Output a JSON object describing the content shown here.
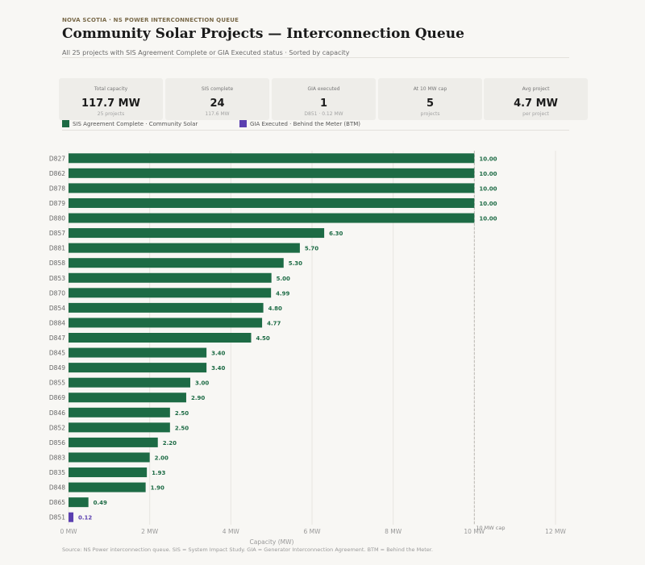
{
  "header": {
    "eyebrow": "NOVA SCOTIA · NS POWER INTERCONNECTION QUEUE",
    "title": "Community Solar Projects — Interconnection Queue",
    "subtitle": "All 25 projects with SIS Agreement Complete or GIA Executed status · Sorted by capacity"
  },
  "stats": [
    {
      "label": "Total capacity",
      "value": "117.7 MW",
      "sub": "25 projects"
    },
    {
      "label": "SIS complete",
      "value": "24",
      "sub": "117.6 MW"
    },
    {
      "label": "GIA executed",
      "value": "1",
      "sub": "D851 · 0.12 MW"
    },
    {
      "label": "At 10 MW cap",
      "value": "5",
      "sub": "projects"
    },
    {
      "label": "Avg project",
      "value": "4.7 MW",
      "sub": "per project"
    }
  ],
  "legend": [
    {
      "label": "SIS Agreement Complete · Community Solar",
      "color": "#1d6b45"
    },
    {
      "label": "GIA Executed · Behind the Meter (BTM)",
      "color": "#5b3fb0"
    }
  ],
  "chart_data": {
    "type": "bar",
    "orientation": "horizontal",
    "categories": [
      "D827",
      "D862",
      "D878",
      "D879",
      "D880",
      "D857",
      "D881",
      "D858",
      "D853",
      "D870",
      "D854",
      "D884",
      "D847",
      "D845",
      "D849",
      "D855",
      "D869",
      "D846",
      "D852",
      "D856",
      "D883",
      "D835",
      "D848",
      "D865",
      "D851"
    ],
    "values": [
      10.0,
      10.0,
      10.0,
      10.0,
      10.0,
      6.3,
      5.7,
      5.3,
      5.0,
      4.99,
      4.8,
      4.77,
      4.5,
      3.4,
      3.4,
      3.0,
      2.9,
      2.5,
      2.5,
      2.2,
      2.0,
      1.93,
      1.9,
      0.49,
      0.12
    ],
    "value_labels": [
      "10.00",
      "10.00",
      "10.00",
      "10.00",
      "10.00",
      "6.30",
      "5.70",
      "5.30",
      "5.00",
      "4.99",
      "4.80",
      "4.77",
      "4.50",
      "3.40",
      "3.40",
      "3.00",
      "2.90",
      "2.50",
      "2.50",
      "2.20",
      "2.00",
      "1.93",
      "1.90",
      "0.49",
      "0.12"
    ],
    "status": [
      "sis",
      "sis",
      "sis",
      "sis",
      "sis",
      "sis",
      "sis",
      "sis",
      "sis",
      "sis",
      "sis",
      "sis",
      "sis",
      "sis",
      "sis",
      "sis",
      "sis",
      "sis",
      "sis",
      "sis",
      "sis",
      "sis",
      "sis",
      "sis",
      "gia"
    ],
    "colors": {
      "sis": "#1d6b45",
      "gia": "#5b3fb0"
    },
    "xlabel": "Capacity (MW)",
    "xlim": [
      0,
      12
    ],
    "xticks": [
      0,
      2,
      4,
      6,
      8,
      10,
      12
    ],
    "xtick_labels": [
      "0 MW",
      "2 MW",
      "4 MW",
      "6 MW",
      "8 MW",
      "10 MW",
      "12 MW"
    ],
    "grid": true,
    "reference_line": {
      "value": 10,
      "label": "10 MW cap"
    }
  },
  "footer": {
    "source": "Source: NS Power interconnection queue. SIS = System Impact Study. GIA = Generator Interconnection Agreement. BTM = Behind the Meter."
  }
}
